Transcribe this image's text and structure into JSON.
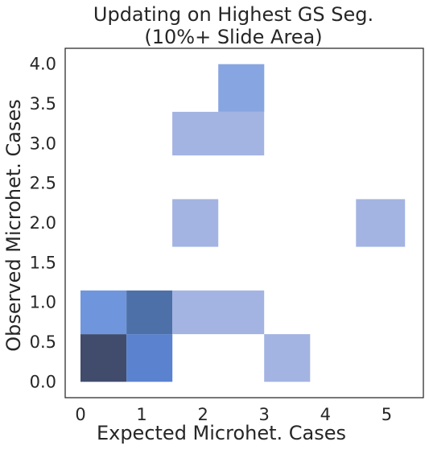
{
  "chart_data": {
    "type": "heatmap",
    "title_line1": "Updating on Highest GS Seg.",
    "title_line2": "(10%+ Slide Area)",
    "xlabel": "Expected Microhet. Cases",
    "ylabel": "Observed Microhet. Cases",
    "xlim": [
      -0.25,
      5.6
    ],
    "ylim": [
      -0.2,
      4.2
    ],
    "x_ticks": [
      "0",
      "1",
      "2",
      "3",
      "4",
      "5"
    ],
    "x_tick_values": [
      0,
      1,
      2,
      3,
      4,
      5
    ],
    "y_ticks": [
      "0.0",
      "0.5",
      "1.0",
      "1.5",
      "2.0",
      "2.5",
      "3.0",
      "3.5",
      "4.0"
    ],
    "y_tick_values": [
      0,
      0.5,
      1,
      1.5,
      2,
      2.5,
      3,
      3.5,
      4
    ],
    "grid": false,
    "colors": {
      "level1": "#a3b4e2",
      "level2": "#87a5e0",
      "level3": "#6f96dd",
      "level4": "#5a82cf",
      "level5": "#4e70a8",
      "level6": "#414c6d"
    },
    "cells": [
      {
        "x0": 0,
        "x1": 0.75,
        "y0": 0,
        "y1": 0.6,
        "level": 6
      },
      {
        "x0": 0.75,
        "x1": 1.5,
        "y0": 0,
        "y1": 0.6,
        "level": 4
      },
      {
        "x0": 0,
        "x1": 0.75,
        "y0": 0.6,
        "y1": 1.15,
        "level": 3
      },
      {
        "x0": 0.75,
        "x1": 1.5,
        "y0": 0.6,
        "y1": 1.15,
        "level": 5
      },
      {
        "x0": 1.5,
        "x1": 3.0,
        "y0": 0.6,
        "y1": 1.15,
        "level": 1
      },
      {
        "x0": 3.0,
        "x1": 3.75,
        "y0": 0,
        "y1": 0.6,
        "level": 1
      },
      {
        "x0": 1.5,
        "x1": 2.25,
        "y0": 1.7,
        "y1": 2.3,
        "level": 1
      },
      {
        "x0": 4.5,
        "x1": 5.3,
        "y0": 1.7,
        "y1": 2.3,
        "level": 1
      },
      {
        "x0": 1.5,
        "x1": 3.0,
        "y0": 2.85,
        "y1": 3.4,
        "level": 1
      },
      {
        "x0": 2.25,
        "x1": 3.0,
        "y0": 3.4,
        "y1": 4.0,
        "level": 2
      }
    ]
  }
}
